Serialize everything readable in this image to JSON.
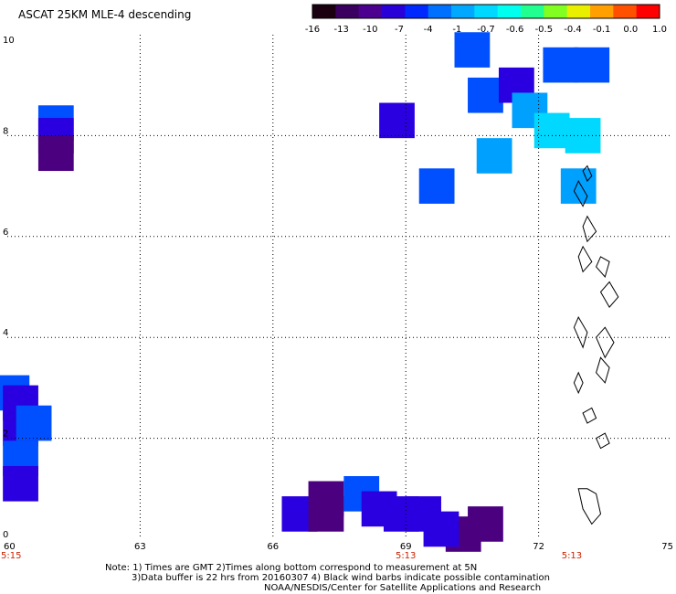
{
  "title": "ASCAT 25KM MLE-4 descending",
  "colorbar": {
    "labels": [
      "-16",
      "-13",
      "-10",
      "-7",
      "-4",
      "-1",
      "-0.7",
      "-0.6",
      "-0.5",
      "-0.4",
      "-0.1",
      "0.0",
      "1.0"
    ],
    "colors": [
      "#1a0010",
      "#3a0060",
      "#4b0090",
      "#2a00d8",
      "#0028ff",
      "#0070ff",
      "#00a8ff",
      "#00d8ff",
      "#00ffee",
      "#20ff90",
      "#80ff20",
      "#e8f000",
      "#ffa000",
      "#ff5000",
      "#ff0000"
    ]
  },
  "chart_data": {
    "type": "heatmap",
    "title": "ASCAT 25KM MLE-4 descending",
    "xlim": [
      60,
      75
    ],
    "ylim": [
      0,
      10
    ],
    "x_ticks": [
      "60",
      "63",
      "66",
      "69",
      "72",
      "75"
    ],
    "y_ticks": [
      "0",
      "2",
      "4",
      "6",
      "8",
      "10"
    ],
    "time_labels": [
      {
        "x": 60,
        "text": "5:15"
      },
      {
        "x": 69,
        "text": "5:13"
      },
      {
        "x": 72.75,
        "text": "5:13"
      }
    ],
    "grid": true,
    "cells": [
      {
        "x": 61.1,
        "y": 8.25,
        "value": -7
      },
      {
        "x": 61.1,
        "y": 8.0,
        "value": -10
      },
      {
        "x": 61.1,
        "y": 7.65,
        "value": -13
      },
      {
        "x": 60.1,
        "y": 2.9,
        "value": -7
      },
      {
        "x": 60.3,
        "y": 2.7,
        "value": -10
      },
      {
        "x": 60.3,
        "y": 2.2,
        "value": -10
      },
      {
        "x": 60.3,
        "y": 1.6,
        "value": -7
      },
      {
        "x": 60.6,
        "y": 2.3,
        "value": -7
      },
      {
        "x": 60.3,
        "y": 1.1,
        "value": -10
      },
      {
        "x": 66.6,
        "y": 0.5,
        "value": -10
      },
      {
        "x": 67.2,
        "y": 0.5,
        "value": -13
      },
      {
        "x": 67.2,
        "y": 0.8,
        "value": -13
      },
      {
        "x": 68.0,
        "y": 0.9,
        "value": -7
      },
      {
        "x": 68.4,
        "y": 0.6,
        "value": -10
      },
      {
        "x": 68.9,
        "y": 0.5,
        "value": -10
      },
      {
        "x": 69.4,
        "y": 0.5,
        "value": -10
      },
      {
        "x": 70.3,
        "y": 0.1,
        "value": -13
      },
      {
        "x": 70.8,
        "y": 0.3,
        "value": -13
      },
      {
        "x": 69.8,
        "y": 0.2,
        "value": -10
      },
      {
        "x": 68.8,
        "y": 8.3,
        "value": -10
      },
      {
        "x": 69.7,
        "y": 7.0,
        "value": -7
      },
      {
        "x": 70.5,
        "y": 9.7,
        "value": -7
      },
      {
        "x": 70.8,
        "y": 8.8,
        "value": -7
      },
      {
        "x": 71.5,
        "y": 9.0,
        "value": -10
      },
      {
        "x": 71.8,
        "y": 8.5,
        "value": -4
      },
      {
        "x": 72.3,
        "y": 8.1,
        "value": -1
      },
      {
        "x": 73.0,
        "y": 8.0,
        "value": -1
      },
      {
        "x": 72.9,
        "y": 7.0,
        "value": -4
      },
      {
        "x": 72.5,
        "y": 9.4,
        "value": -7
      },
      {
        "x": 71.0,
        "y": 7.6,
        "value": -4
      },
      {
        "x": 73.2,
        "y": 9.4,
        "value": -7
      }
    ],
    "notes": [
      "Note: 1) Times are GMT 2)Times along bottom correspond to measurement at 5N",
      "3)Data buffer is 22 hrs from 20160307 4) Black wind barbs indicate possible contamination",
      "NOAA/NESDIS/Center for Satellite Applications and Research"
    ]
  }
}
